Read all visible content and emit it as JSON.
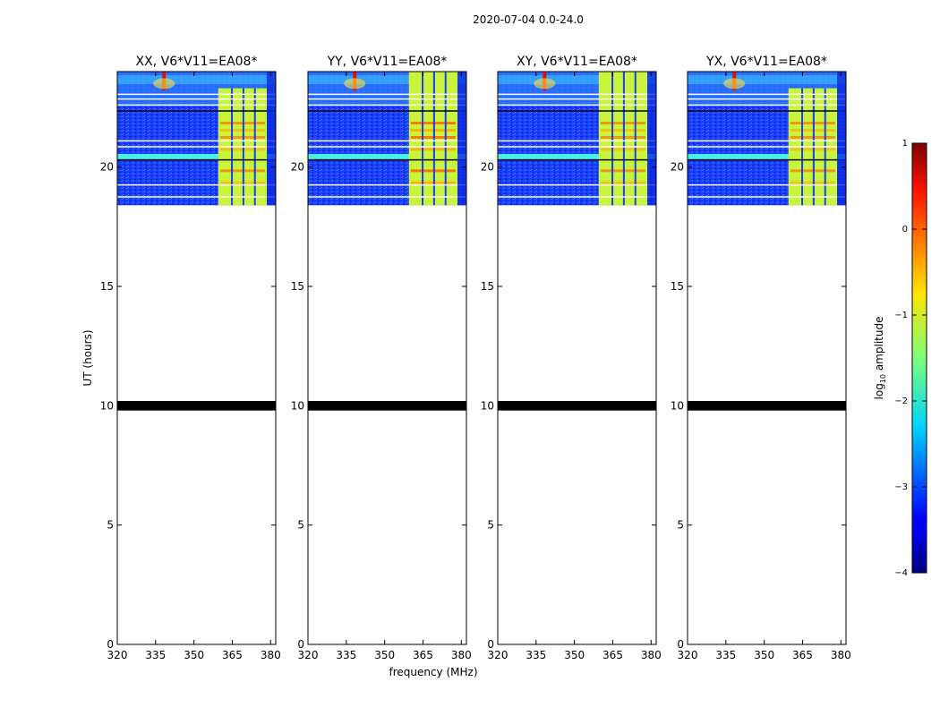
{
  "figure_title": "2020-07-04 0.0-24.0",
  "colors": {
    "line_black": "#000000",
    "background": "#ffffff"
  },
  "chart_data": {
    "type": "heatmap",
    "x_range": [
      320,
      382
    ],
    "y_range": [
      0,
      24
    ],
    "x_ticks": [
      320,
      335,
      350,
      365,
      380
    ],
    "y_ticks": [
      0,
      5,
      10,
      15,
      20
    ],
    "xlabel": "frequency (MHz)",
    "ylabel": "UT (hours)",
    "data_y_range": [
      18.4,
      24
    ],
    "blank_band_hours": [
      9.8,
      10.2
    ],
    "rfi_band_mhz": [
      359.5,
      378.5
    ],
    "panels": [
      {
        "title": "XX, V6*V11=EA08*",
        "band_clip_mhz": 378.5
      },
      {
        "title": "YY, V6*V11=EA08*",
        "band_clip_mhz": 378.5
      },
      {
        "title": "XY, V6*V11=EA08*",
        "band_clip_mhz": 378.5
      },
      {
        "title": "YX, V6*V11=EA08*",
        "band_clip_mhz": 378.5
      }
    ],
    "colorbar": {
      "label_main": "log",
      "label_sub": "10",
      "label_tail": " amplitude",
      "range": [
        -4,
        1
      ],
      "ticks": [
        1,
        0,
        -1,
        -2,
        -3,
        -4
      ],
      "tick_labels": [
        "1",
        "0",
        "−1",
        "−2",
        "−3",
        "−4"
      ],
      "colormap": "jet"
    }
  }
}
